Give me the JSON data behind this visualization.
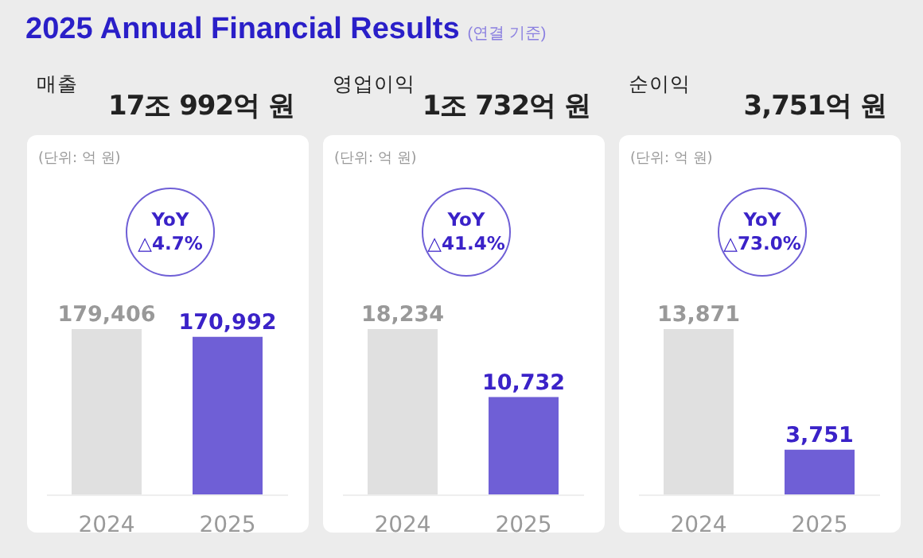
{
  "chart_data": [
    {
      "type": "bar",
      "title": "매출",
      "subtitle": "17조 992억 원",
      "categories": [
        "2024",
        "2025"
      ],
      "values": [
        179406,
        170992
      ],
      "colors": [
        "#e0e0e0",
        "#6f5fd6"
      ],
      "value_labels": [
        "179,406",
        "170,992"
      ],
      "annotations": [
        "(단위: 억 원)",
        "YoY",
        "△4.7%",
        "2025 Annual Financial Results",
        "(연결 기준)"
      ]
    },
    {
      "type": "bar",
      "title": "영업이익",
      "subtitle": "1조 732억 원",
      "categories": [
        "2024",
        "2025"
      ],
      "values": [
        18234,
        10732
      ],
      "colors": [
        "#e0e0e0",
        "#6f5fd6"
      ],
      "value_labels": [
        "18,234",
        "10,732"
      ],
      "annotations": [
        "(단위: 억 원)",
        "YoY",
        "△41.4%"
      ]
    },
    {
      "type": "bar",
      "title": "순이익",
      "subtitle": "3,751억 원",
      "categories": [
        "2024",
        "2025"
      ],
      "values": [
        13871,
        3751
      ],
      "colors": [
        "#e0e0e0",
        "#6f5fd6"
      ],
      "value_labels": [
        "13,871",
        "3,751"
      ],
      "annotations": [
        "(단위: 억 원)",
        "YoY",
        "△73.0%"
      ]
    }
  ]
}
